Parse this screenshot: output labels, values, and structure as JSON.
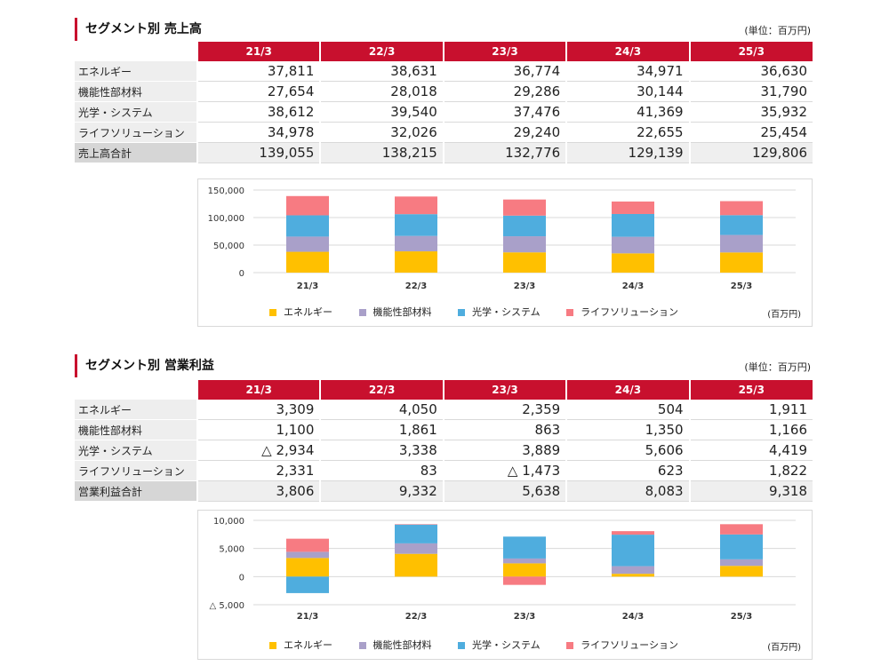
{
  "sales": {
    "title": "セグメント別 売上高",
    "unit": "(単位：百万円)",
    "periods": [
      "21/3",
      "22/3",
      "23/3",
      "24/3",
      "25/3"
    ],
    "rows": [
      {
        "label": "エネルギー",
        "cells": [
          "37,811",
          "38,631",
          "36,774",
          "34,971",
          "36,630"
        ]
      },
      {
        "label": "機能性部材料",
        "cells": [
          "27,654",
          "28,018",
          "29,286",
          "30,144",
          "31,790"
        ]
      },
      {
        "label": "光学・システム",
        "cells": [
          "38,612",
          "39,540",
          "37,476",
          "41,369",
          "35,932"
        ]
      },
      {
        "label": "ライフソリューション",
        "cells": [
          "34,978",
          "32,026",
          "29,240",
          "22,655",
          "25,454"
        ]
      }
    ],
    "total": {
      "label": "売上高合計",
      "cells": [
        "139,055",
        "138,215",
        "132,776",
        "129,139",
        "129,806"
      ]
    },
    "chart_unit": "(百万円)"
  },
  "profit": {
    "title": "セグメント別 営業利益",
    "unit": "(単位：百万円)",
    "periods": [
      "21/3",
      "22/3",
      "23/3",
      "24/3",
      "25/3"
    ],
    "rows": [
      {
        "label": "エネルギー",
        "cells": [
          "3,309",
          "4,050",
          "2,359",
          "504",
          "1,911"
        ]
      },
      {
        "label": "機能性部材料",
        "cells": [
          "1,100",
          "1,861",
          "863",
          "1,350",
          "1,166"
        ]
      },
      {
        "label": "光学・システム",
        "cells": [
          "△ 2,934",
          "3,338",
          "3,889",
          "5,606",
          "4,419"
        ]
      },
      {
        "label": "ライフソリューション",
        "cells": [
          "2,331",
          "83",
          "△ 1,473",
          "623",
          "1,822"
        ]
      }
    ],
    "total": {
      "label": "営業利益合計",
      "cells": [
        "3,806",
        "9,332",
        "5,638",
        "8,083",
        "9,318"
      ]
    },
    "chart_unit": "(百万円)"
  },
  "chart_data": [
    {
      "type": "bar",
      "stacked": true,
      "categories": [
        "21/3",
        "22/3",
        "23/3",
        "24/3",
        "25/3"
      ],
      "series": [
        {
          "name": "エネルギー",
          "color": "#ffc000",
          "values": [
            37811,
            38631,
            36774,
            34971,
            36630
          ]
        },
        {
          "name": "機能性部材料",
          "color": "#a9a0c9",
          "values": [
            27654,
            28018,
            29286,
            30144,
            31790
          ]
        },
        {
          "name": "光学・システム",
          "color": "#4fadde",
          "values": [
            38612,
            39540,
            37476,
            41369,
            35932
          ]
        },
        {
          "name": "ライフソリューション",
          "color": "#f77b82",
          "values": [
            34978,
            32026,
            29240,
            22655,
            25454
          ]
        }
      ],
      "ylim": [
        0,
        150000
      ],
      "yticks": [
        0,
        50000,
        100000,
        150000
      ],
      "ytick_labels": [
        "0",
        "50,000",
        "100,000",
        "150,000"
      ],
      "legend": "bottom",
      "grid": true
    },
    {
      "type": "bar",
      "stacked": true,
      "categories": [
        "21/3",
        "22/3",
        "23/3",
        "24/3",
        "25/3"
      ],
      "series": [
        {
          "name": "エネルギー",
          "color": "#ffc000",
          "values": [
            3309,
            4050,
            2359,
            504,
            1911
          ]
        },
        {
          "name": "機能性部材料",
          "color": "#a9a0c9",
          "values": [
            1100,
            1861,
            863,
            1350,
            1166
          ]
        },
        {
          "name": "光学・システム",
          "color": "#4fadde",
          "values": [
            -2934,
            3338,
            3889,
            5606,
            4419
          ]
        },
        {
          "name": "ライフソリューション",
          "color": "#f77b82",
          "values": [
            2331,
            83,
            -1473,
            623,
            1822
          ]
        }
      ],
      "ylim": [
        -5000,
        10000
      ],
      "yticks": [
        -5000,
        0,
        5000,
        10000
      ],
      "ytick_labels": [
        "△ 5,000",
        "0",
        "5,000",
        "10,000"
      ],
      "legend": "bottom",
      "grid": true
    }
  ]
}
